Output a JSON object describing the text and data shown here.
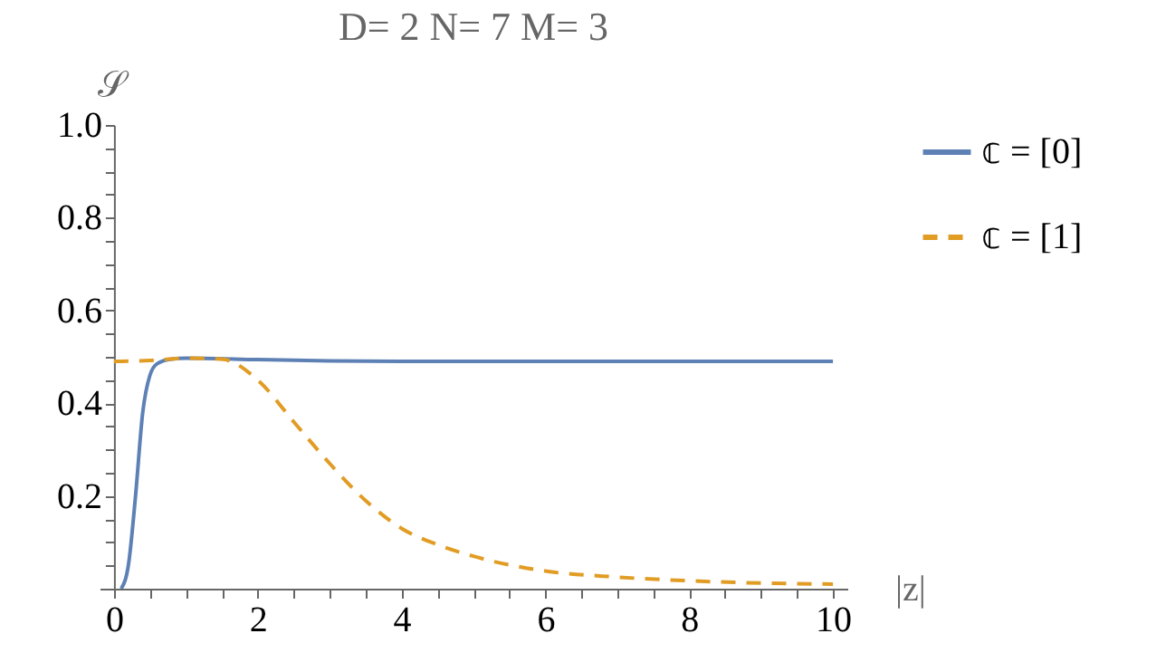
{
  "chart_data": {
    "type": "line",
    "title": "D= 2  N= 7  M= 3",
    "xlabel": "|z|",
    "ylabel": "𝒮",
    "xlim": [
      -0.2,
      10.2
    ],
    "ylim": [
      0,
      1.0
    ],
    "xticks": [
      0,
      {
        "value": 0.5,
        "label": null
      },
      {
        "value": 1,
        "label": null
      },
      {
        "value": 1.5,
        "label": null
      },
      2,
      {
        "value": 2.5,
        "label": null
      },
      {
        "value": 3,
        "label": null
      },
      {
        "value": 3.5,
        "label": null
      },
      4,
      {
        "value": 4.5,
        "label": null
      },
      {
        "value": 5,
        "label": null
      },
      {
        "value": 5.5,
        "label": null
      },
      6,
      {
        "value": 6.5,
        "label": null
      },
      {
        "value": 7,
        "label": null
      },
      {
        "value": 7.5,
        "label": null
      },
      8,
      {
        "value": 8.5,
        "label": null
      },
      {
        "value": 9,
        "label": null
      },
      {
        "value": 9.5,
        "label": null
      },
      10
    ],
    "yticks": [
      {
        "value": 0.05,
        "label": null
      },
      {
        "value": 0.1,
        "label": null
      },
      {
        "value": 0.15,
        "label": null
      },
      0.2,
      {
        "value": 0.25,
        "label": null
      },
      {
        "value": 0.3,
        "label": null
      },
      {
        "value": 0.35,
        "label": null
      },
      0.4,
      {
        "value": 0.45,
        "label": null
      },
      {
        "value": 0.5,
        "label": null
      },
      {
        "value": 0.55,
        "label": null
      },
      0.6,
      {
        "value": 0.65,
        "label": null
      },
      {
        "value": 0.7,
        "label": null
      },
      {
        "value": 0.75,
        "label": null
      },
      0.8,
      {
        "value": 0.85,
        "label": null
      },
      {
        "value": 0.9,
        "label": null
      },
      {
        "value": 0.95,
        "label": null
      },
      {
        "value": 1.0,
        "label": "1.0"
      }
    ],
    "grid": false,
    "legend": "right",
    "series": [
      {
        "name": "𝕔 = [0]",
        "color": "#5e81b5",
        "line_style": "solid",
        "x": [
          0.1,
          0.2,
          0.3,
          0.4,
          0.5,
          0.6,
          0.8,
          1.0,
          2.0,
          3.0,
          4.0,
          6.0,
          8.0,
          10.0
        ],
        "values": [
          0,
          0.05,
          0.2,
          0.38,
          0.46,
          0.485,
          0.495,
          0.497,
          0.494,
          0.491,
          0.49,
          0.49,
          0.49,
          0.49
        ]
      },
      {
        "name": "𝕔 = [1]",
        "color": "#e19c24",
        "line_style": "dashed",
        "x": [
          0,
          0.5,
          1.0,
          1.5,
          2.0,
          2.5,
          3.0,
          3.5,
          4.0,
          4.5,
          5.0,
          6.0,
          7.0,
          8.0,
          9.0,
          10.0
        ],
        "values": [
          0.49,
          0.492,
          0.497,
          0.495,
          0.45,
          0.36,
          0.27,
          0.19,
          0.13,
          0.095,
          0.07,
          0.038,
          0.025,
          0.017,
          0.012,
          0.01
        ]
      }
    ]
  }
}
